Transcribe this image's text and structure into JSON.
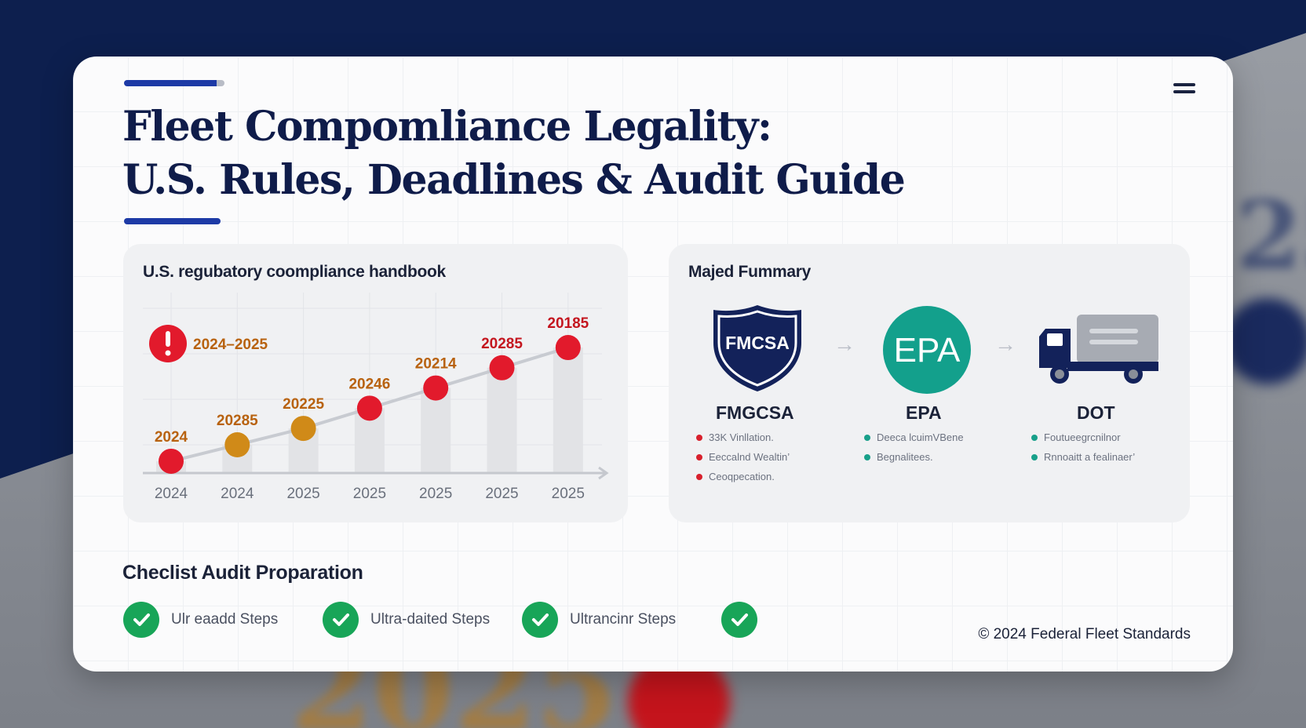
{
  "title": {
    "line1": "Fleet Compomliance Legality:",
    "line2": "U.S. Rules, Deadlines & Audit Guide"
  },
  "left_panel": {
    "title": "U.S. regubatory coompliance handbook",
    "alert_label": "2024–2025"
  },
  "chart_data": {
    "type": "line",
    "x": [
      "2024",
      "2024",
      "2025",
      "2025",
      "2025",
      "2025",
      "2025"
    ],
    "point_labels": [
      "2024",
      "20285",
      "20225",
      "20246",
      "20214",
      "20285",
      "20185"
    ],
    "point_colors": [
      "#e21a2c",
      "#d08a18",
      "#d08a18",
      "#e21a2c",
      "#e21a2c",
      "#e21a2c",
      "#e21a2c"
    ],
    "label_colors": [
      "#b8620f",
      "#b8620f",
      "#b8620f",
      "#b8620f",
      "#b8620f",
      "#c4161f",
      "#c4161f"
    ],
    "values": [
      0.05,
      0.18,
      0.31,
      0.47,
      0.63,
      0.79,
      0.95
    ],
    "ylim": [
      0,
      1
    ],
    "grid": true,
    "line_color": "#c8cbd1",
    "bar_color": "#e2e3e6"
  },
  "right_panel": {
    "title": "Majed Fummary",
    "agencies": [
      {
        "badge": "FMCSA",
        "name": "FMGCSA",
        "dot_color": "#d8202c",
        "bullets": [
          "33K Vinllation.",
          "Eeccalnd Wealtin’",
          "Ceoqpecation."
        ]
      },
      {
        "badge": "EPA",
        "name": "EPA",
        "dot_color": "#18a08a",
        "bullets": [
          "Deeca lcuimVBene",
          "Begnalitees."
        ]
      },
      {
        "badge": "",
        "name": "DOT",
        "dot_color": "#18a08a",
        "bullets": [
          "Foutueegrcnilnor",
          "Rnnoaitt a fealinaer’"
        ]
      }
    ]
  },
  "checklist": {
    "title": "Checlist Audit Proparation",
    "items": [
      "Ulr eaadd Steps",
      "Ultra-daited Steps",
      "Ultrancinr Steps",
      ""
    ]
  },
  "footer": {
    "copyright": "© 2024 Federal Fleet Standards"
  },
  "colors": {
    "navy": "#0f1c4a",
    "accent": "#1d3aa6",
    "green": "#18a558",
    "epa_teal": "#13a08c"
  }
}
